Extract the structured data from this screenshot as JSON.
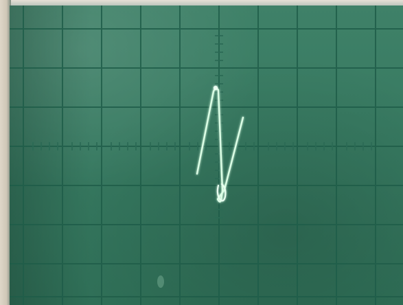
{
  "scene": {
    "subject": "oscilloscope-screen-photo",
    "colors": {
      "bezel": "#d8d0c2",
      "screen": "#3a7c63",
      "grid": "#1f5d49",
      "trace": "#dcffe6",
      "trace_glow": "#9dffbf"
    }
  }
}
